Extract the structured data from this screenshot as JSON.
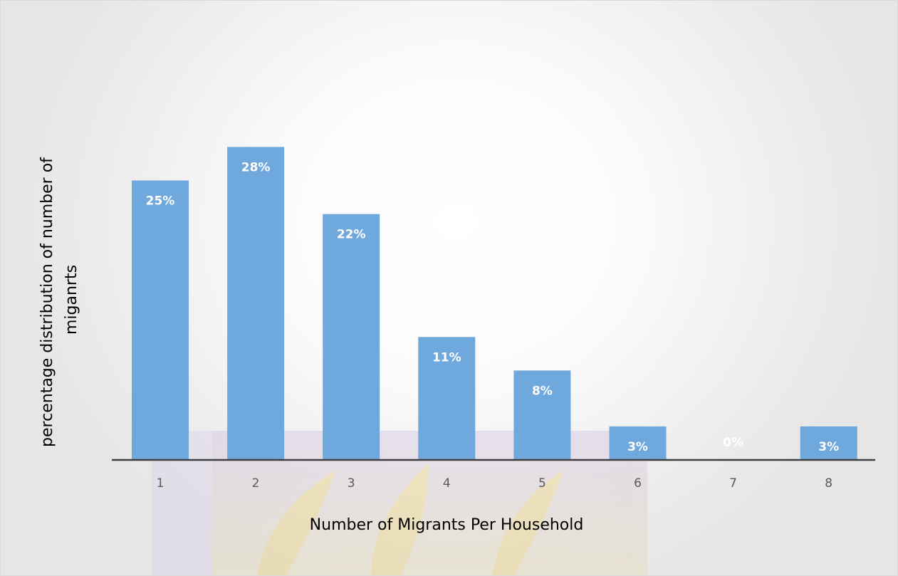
{
  "chart_data": {
    "type": "bar",
    "title": "",
    "xlabel": "Number of Migrants Per Household",
    "ylabel": [
      "percentage distribution of number of",
      "miganrts"
    ],
    "categories": [
      "1",
      "2",
      "3",
      "4",
      "5",
      "6",
      "7",
      "8"
    ],
    "values": [
      25,
      28,
      22,
      11,
      8,
      3,
      0,
      3
    ],
    "data_labels": [
      "25%",
      "28%",
      "22%",
      "11%",
      "8%",
      "3%",
      "0%",
      "3%"
    ],
    "ylim": [
      0,
      40
    ],
    "grid": false,
    "legend": "none",
    "colors": {
      "bar": "#6fa8dc",
      "axis": "#404040",
      "data_label": "#ffffff",
      "tick_label": "#595959"
    }
  }
}
